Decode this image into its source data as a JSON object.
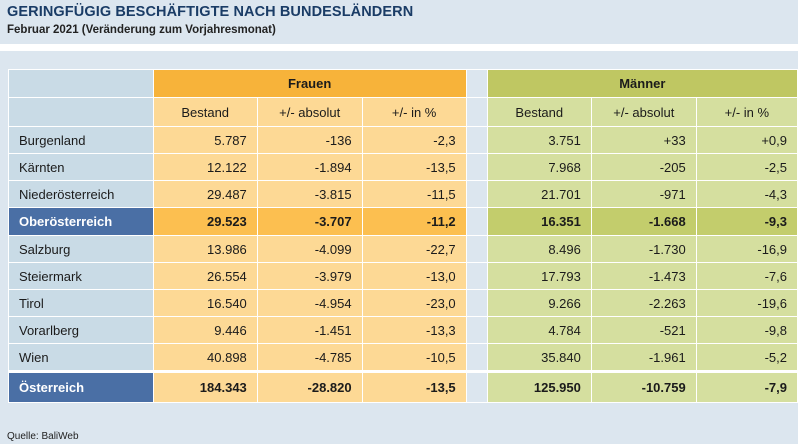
{
  "title": "GERINGFÜGIG BESCHÄFTIGTE NACH BUNDESLÄNDERN",
  "subtitle": "Februar 2021 (Veränderung zum Vorjahresmonat)",
  "groups": {
    "women": "Frauen",
    "men": "Männer"
  },
  "columns": [
    "Bestand",
    "+/- absolut",
    "+/- in %",
    "Bestand",
    "+/- absolut",
    "+/- in %"
  ],
  "rows": [
    {
      "name": "Burgenland",
      "values": [
        "5.787",
        "-136",
        "-2,3",
        "3.751",
        "+33",
        "+0,9"
      ]
    },
    {
      "name": "Kärnten",
      "values": [
        "12.122",
        "-1.894",
        "-13,5",
        "7.968",
        "-205",
        "-2,5"
      ]
    },
    {
      "name": "Niederösterreich",
      "values": [
        "29.487",
        "-3.815",
        "-11,5",
        "21.701",
        "-971",
        "-4,3"
      ]
    },
    {
      "name": "Oberösterreich",
      "values": [
        "29.523",
        "-3.707",
        "-11,2",
        "16.351",
        "-1.668",
        "-9,3"
      ]
    },
    {
      "name": "Salzburg",
      "values": [
        "13.986",
        "-4.099",
        "-22,7",
        "8.496",
        "-1.730",
        "-16,9"
      ]
    },
    {
      "name": "Steiermark",
      "values": [
        "26.554",
        "-3.979",
        "-13,0",
        "17.793",
        "-1.473",
        "-7,6"
      ]
    },
    {
      "name": "Tirol",
      "values": [
        "16.540",
        "-4.954",
        "-23,0",
        "9.266",
        "-2.263",
        "-19,6"
      ]
    },
    {
      "name": "Vorarlberg",
      "values": [
        "9.446",
        "-1.451",
        "-13,3",
        "4.784",
        "-521",
        "-9,8"
      ]
    },
    {
      "name": "Wien",
      "values": [
        "40.898",
        "-4.785",
        "-10,5",
        "35.840",
        "-1.961",
        "-5,2"
      ]
    }
  ],
  "total": {
    "name": "Österreich",
    "values": [
      "184.343",
      "-28.820",
      "-13,5",
      "125.950",
      "-10.759",
      "-7,9"
    ]
  },
  "source": "Quelle: BaliWeb",
  "colors": {
    "frauen_header": "#f7b33a",
    "frauen_cell": "#fdd995",
    "maenner_header": "#bfc762",
    "maenner_cell": "#d5df9f",
    "highlight_name": "#4a6fa5",
    "name_cell": "#c9dbe6"
  }
}
